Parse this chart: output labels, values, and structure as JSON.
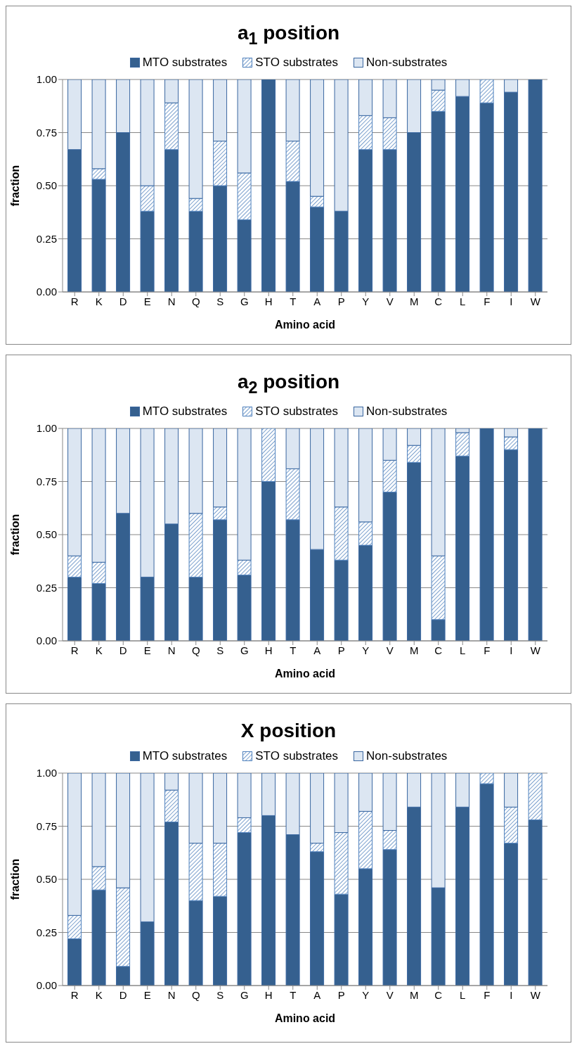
{
  "chart_data": [
    {
      "type": "bar",
      "title": "a$_{1}$ position",
      "xlabel": "Amino acid",
      "ylabel": "fraction",
      "stacked": true,
      "grid": "y",
      "legend": "top",
      "categories": [
        "R",
        "K",
        "D",
        "E",
        "N",
        "Q",
        "S",
        "G",
        "H",
        "T",
        "A",
        "P",
        "Y",
        "V",
        "M",
        "C",
        "L",
        "F",
        "I",
        "W"
      ],
      "ylim": [
        0,
        1
      ],
      "yticks": [
        {
          "value": 0,
          "label": "0.00"
        },
        {
          "value": 0.25,
          "label": "0.25"
        },
        {
          "value": 0.5,
          "label": "0.50"
        },
        {
          "value": 0.75,
          "label": "0.75"
        },
        {
          "value": 1,
          "label": "1.00"
        }
      ],
      "series": [
        {
          "name": "MTO substrates",
          "color": "#35608f",
          "values": [
            0.67,
            0.53,
            0.75,
            0.38,
            0.67,
            0.38,
            0.5,
            0.34,
            1.0,
            0.52,
            0.4,
            0.38,
            0.67,
            0.67,
            0.75,
            0.85,
            0.92,
            0.89,
            0.94,
            1.0
          ]
        },
        {
          "name": "STO substrates",
          "color": "#4f81bd",
          "values": [
            0,
            0.05,
            0,
            0.12,
            0.22,
            0.06,
            0.21,
            0.22,
            0,
            0.19,
            0.05,
            0,
            0.16,
            0.15,
            0,
            0.1,
            0,
            0.11,
            0,
            0
          ]
        },
        {
          "name": "Non-substrates",
          "color": "#dce6f2",
          "values": [
            0.33,
            0.42,
            0.25,
            0.5,
            0.11,
            0.56,
            0.29,
            0.44,
            0,
            0.29,
            0.55,
            0.62,
            0.17,
            0.18,
            0.25,
            0.05,
            0.08,
            0,
            0.06,
            0
          ]
        }
      ]
    },
    {
      "type": "bar",
      "title": "a$_{2}$ position",
      "xlabel": "Amino acid",
      "ylabel": "fraction",
      "stacked": true,
      "grid": "y",
      "legend": "top",
      "categories": [
        "R",
        "K",
        "D",
        "E",
        "N",
        "Q",
        "S",
        "G",
        "H",
        "T",
        "A",
        "P",
        "Y",
        "V",
        "M",
        "C",
        "L",
        "F",
        "I",
        "W"
      ],
      "ylim": [
        0,
        1
      ],
      "yticks": [
        {
          "value": 0,
          "label": "0.00"
        },
        {
          "value": 0.25,
          "label": "0.25"
        },
        {
          "value": 0.5,
          "label": "0.50"
        },
        {
          "value": 0.75,
          "label": "0.75"
        },
        {
          "value": 1,
          "label": "1.00"
        }
      ],
      "series": [
        {
          "name": "MTO substrates",
          "color": "#35608f",
          "values": [
            0.3,
            0.27,
            0.6,
            0.3,
            0.55,
            0.3,
            0.57,
            0.31,
            0.75,
            0.57,
            0.43,
            0.38,
            0.45,
            0.7,
            0.84,
            0.1,
            0.87,
            1.0,
            0.9,
            1.0
          ]
        },
        {
          "name": "STO substrates",
          "color": "#4f81bd",
          "values": [
            0.1,
            0.1,
            0,
            0,
            0,
            0.3,
            0.06,
            0.07,
            0.25,
            0.24,
            0,
            0.25,
            0.11,
            0.15,
            0.08,
            0.3,
            0.11,
            0,
            0.06,
            0
          ]
        },
        {
          "name": "Non-substrates",
          "color": "#dce6f2",
          "values": [
            0.6,
            0.63,
            0.4,
            0.7,
            0.45,
            0.4,
            0.37,
            0.62,
            0,
            0.19,
            0.57,
            0.37,
            0.44,
            0.15,
            0.08,
            0.6,
            0.02,
            0,
            0.04,
            0
          ]
        }
      ]
    },
    {
      "type": "bar",
      "title": "X position",
      "xlabel": "Amino acid",
      "ylabel": "fraction",
      "stacked": true,
      "grid": "y",
      "legend": "top",
      "categories": [
        "R",
        "K",
        "D",
        "E",
        "N",
        "Q",
        "S",
        "G",
        "H",
        "T",
        "A",
        "P",
        "Y",
        "V",
        "M",
        "C",
        "L",
        "F",
        "I",
        "W"
      ],
      "ylim": [
        0,
        1
      ],
      "yticks": [
        {
          "value": 0,
          "label": "0.00"
        },
        {
          "value": 0.25,
          "label": "0.25"
        },
        {
          "value": 0.5,
          "label": "0.50"
        },
        {
          "value": 0.75,
          "label": "0.75"
        },
        {
          "value": 1,
          "label": "1.00"
        }
      ],
      "series": [
        {
          "name": "MTO substrates",
          "color": "#35608f",
          "values": [
            0.22,
            0.45,
            0.09,
            0.3,
            0.77,
            0.4,
            0.42,
            0.72,
            0.8,
            0.71,
            0.63,
            0.43,
            0.55,
            0.64,
            0.84,
            0.46,
            0.84,
            0.95,
            0.67,
            0.78
          ]
        },
        {
          "name": "STO substrates",
          "color": "#4f81bd",
          "values": [
            0.11,
            0.11,
            0.37,
            0,
            0.15,
            0.27,
            0.25,
            0.07,
            0,
            0,
            0.04,
            0.29,
            0.27,
            0.09,
            0,
            0,
            0,
            0.05,
            0.17,
            0.22
          ]
        },
        {
          "name": "Non-substrates",
          "color": "#dce6f2",
          "values": [
            0.67,
            0.44,
            0.54,
            0.7,
            0.08,
            0.33,
            0.33,
            0.21,
            0.2,
            0.29,
            0.33,
            0.28,
            0.18,
            0.27,
            0.16,
            0.54,
            0.16,
            0,
            0.16,
            0
          ]
        }
      ]
    }
  ]
}
